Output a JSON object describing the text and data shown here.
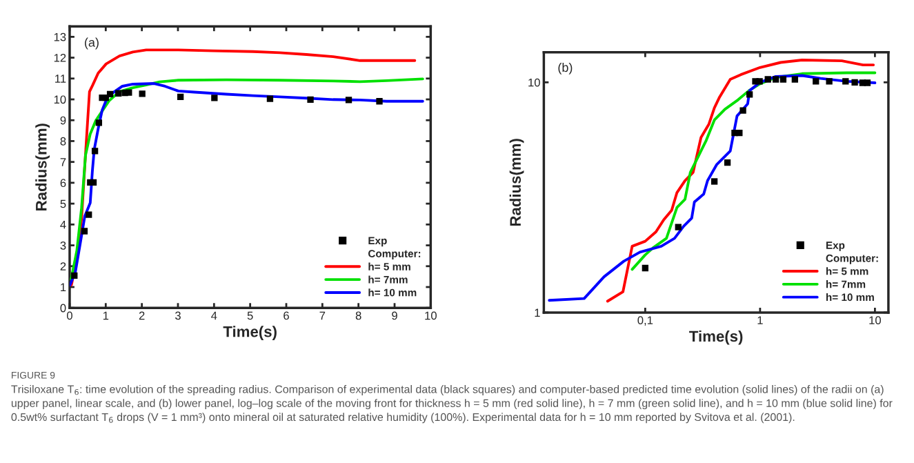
{
  "chart_data": [
    {
      "type": "line",
      "xlabel": "Time(s)",
      "ylabel": "Radius(mm)",
      "xlim": [
        0,
        10
      ],
      "ylim": [
        0,
        13.5
      ],
      "xticks": [
        0,
        1,
        2,
        3,
        4,
        5,
        6,
        7,
        8,
        9,
        10
      ],
      "yticks": [
        0,
        1,
        2,
        3,
        4,
        5,
        6,
        7,
        8,
        9,
        10,
        11,
        12,
        13
      ],
      "grid": false,
      "legend": "bottom right",
      "legend_title": "Computer:",
      "annotations": [
        "(a)",
        "FIGURE 9",
        "Trisiloxane T$_{6}$: time evolution of the spreading radius. Comparison of experimental data (black squares) and computer-based predicted time evolution (solid lines) of the radii on (a) upper panel, linear scale, and (b) lower panel, log–log scale of the moving front for thickness h = 5 mm (red solid line), h = 7 mm (green solid line), and h = 10 mm (blue solid line) for 0.5wt% surfactant T$_{6}$ drops (V = 1 mm³) onto mineral oil at saturated relative humidity (100%). Experimental data for h = 10 mm reported by Svitova et al. (2001)."
      ],
      "series": [
        {
          "name": "Exp",
          "type": "scatter",
          "marker": "square",
          "color": "#000000",
          "x": [
            0.13,
            0.41,
            0.53,
            0.57,
            0.66,
            0.7,
            0.81,
            0.9,
            1.0,
            1.12,
            1.35,
            1.53,
            1.64,
            2.01,
            3.07,
            4.01,
            5.55,
            6.67,
            7.73,
            8.58
          ],
          "values": [
            1.55,
            3.68,
            4.47,
            6.02,
            6.02,
            7.52,
            8.88,
            10.08,
            10.08,
            10.25,
            10.29,
            10.31,
            10.33,
            10.27,
            10.12,
            10.07,
            10.03,
            9.99,
            9.97,
            9.91
          ]
        },
        {
          "name": "h= 5 mm",
          "marker": "none",
          "line_style": "solid",
          "color": "#ff0000",
          "x": [
            0.05,
            0.2,
            0.33,
            0.42,
            0.48,
            0.55,
            0.64,
            0.79,
            1.01,
            1.38,
            1.75,
            2.12,
            3.01,
            3.97,
            5.08,
            5.82,
            6.56,
            7.3,
            8.04,
            8.78,
            9.56
          ],
          "values": [
            1.1,
            2.37,
            4.28,
            6.82,
            8.47,
            10.37,
            10.69,
            11.26,
            11.7,
            12.08,
            12.27,
            12.37,
            12.37,
            12.33,
            12.29,
            12.24,
            12.15,
            12.05,
            11.86,
            11.86,
            11.86
          ]
        },
        {
          "name": "h= 7mm",
          "marker": "none",
          "line_style": "solid",
          "color": "#00e000",
          "x": [
            0.04,
            0.2,
            0.33,
            0.44,
            0.57,
            0.72,
            0.87,
            1.09,
            1.38,
            1.75,
            2.12,
            2.49,
            3.01,
            4.34,
            5.82,
            7.3,
            8.04,
            8.78,
            9.78
          ],
          "values": [
            1.36,
            2.75,
            4.79,
            7.33,
            8.34,
            8.97,
            9.36,
            9.93,
            10.37,
            10.56,
            10.69,
            10.84,
            10.92,
            10.94,
            10.92,
            10.88,
            10.85,
            10.9,
            10.98
          ]
        },
        {
          "name": "h= 10 mm",
          "marker": "none",
          "line_style": "solid",
          "color": "#0000ff",
          "x": [
            0.01,
            0.16,
            0.31,
            0.42,
            0.57,
            0.63,
            0.68,
            0.79,
            0.9,
            1.05,
            1.24,
            1.46,
            1.75,
            2.34,
            2.64,
            3.01,
            3.45,
            4.34,
            5.08,
            5.82,
            6.56,
            7.3,
            8.04,
            8.78,
            9.78
          ],
          "values": [
            1.1,
            1.74,
            3.26,
            4.4,
            5.04,
            6.57,
            7.58,
            8.59,
            9.48,
            10.12,
            10.37,
            10.63,
            10.73,
            10.76,
            10.63,
            10.4,
            10.35,
            10.25,
            10.18,
            10.12,
            10.06,
            9.99,
            9.97,
            9.91,
            9.91
          ]
        }
      ]
    },
    {
      "type": "line",
      "xlabel": "Time(s)",
      "ylabel": "Radius(mm)",
      "log": "xy",
      "xlim": [
        0.0131,
        13.1
      ],
      "ylim": [
        1,
        13.5
      ],
      "xticks": [
        {
          "value": 0.1,
          "label": "0,1"
        },
        1,
        10
      ],
      "yticks": [
        1,
        10
      ],
      "grid": false,
      "legend": "bottom right",
      "legend_title": "Computer:",
      "annotations": [
        "(b)"
      ],
      "series": [
        {
          "name": "Exp",
          "type": "scatter",
          "marker": "square",
          "color": "#000000",
          "x": [
            0.1,
            0.194,
            0.4,
            0.52,
            0.6,
            0.66,
            0.71,
            0.81,
            0.91,
            0.99,
            1.17,
            1.37,
            1.59,
            2.01,
            3.06,
            4.0,
            5.55,
            6.67,
            7.8,
            8.6
          ],
          "values": [
            1.56,
            2.35,
            3.71,
            4.48,
            6.03,
            6.03,
            7.54,
            8.86,
            10.1,
            10.1,
            10.3,
            10.3,
            10.3,
            10.3,
            10.1,
            10.1,
            10.1,
            10.0,
            9.95,
            9.95
          ]
        },
        {
          "name": "h= 5 mm",
          "marker": "none",
          "line_style": "solid",
          "color": "#ff0000",
          "x": [
            0.047,
            0.064,
            0.077,
            0.1,
            0.124,
            0.145,
            0.17,
            0.189,
            0.222,
            0.261,
            0.306,
            0.359,
            0.4,
            0.444,
            0.55,
            0.68,
            1.0,
            1.51,
            2.32,
            5.15,
            7.87,
            9.7
          ],
          "values": [
            1.12,
            1.23,
            1.94,
            2.04,
            2.24,
            2.53,
            2.78,
            3.32,
            3.74,
            4.06,
            5.76,
            6.59,
            7.74,
            8.63,
            10.3,
            10.8,
            11.6,
            12.2,
            12.5,
            12.4,
            11.9,
            11.9
          ]
        },
        {
          "name": "h= 7mm",
          "marker": "none",
          "line_style": "solid",
          "color": "#00e000",
          "x": [
            0.077,
            0.1,
            0.117,
            0.153,
            0.189,
            0.222,
            0.247,
            0.29,
            0.34,
            0.4,
            0.494,
            0.644,
            0.8,
            1.0,
            1.37,
            2.32,
            5.7,
            10
          ],
          "values": [
            1.54,
            1.78,
            1.91,
            2.1,
            2.86,
            3.1,
            4.06,
            4.77,
            5.6,
            6.86,
            7.64,
            8.4,
            9.2,
            9.86,
            10.5,
            10.9,
            11.0,
            11.0
          ]
        },
        {
          "name": "h= 10 mm",
          "marker": "none",
          "line_style": "solid",
          "color": "#0000ff",
          "x": [
            0.0146,
            0.0294,
            0.0438,
            0.065,
            0.09,
            0.138,
            0.18,
            0.216,
            0.254,
            0.268,
            0.323,
            0.349,
            0.42,
            0.55,
            0.63,
            0.78,
            0.81,
            1.0,
            1.37,
            2.32,
            3.36,
            5.7,
            10
          ],
          "values": [
            1.13,
            1.15,
            1.43,
            1.67,
            1.83,
            1.94,
            2.1,
            2.37,
            2.57,
            3.02,
            3.27,
            3.74,
            4.4,
            5.03,
            7.14,
            8.06,
            9.2,
            10.0,
            10.6,
            10.7,
            10.4,
            10.1,
            9.95
          ]
        }
      ]
    }
  ]
}
